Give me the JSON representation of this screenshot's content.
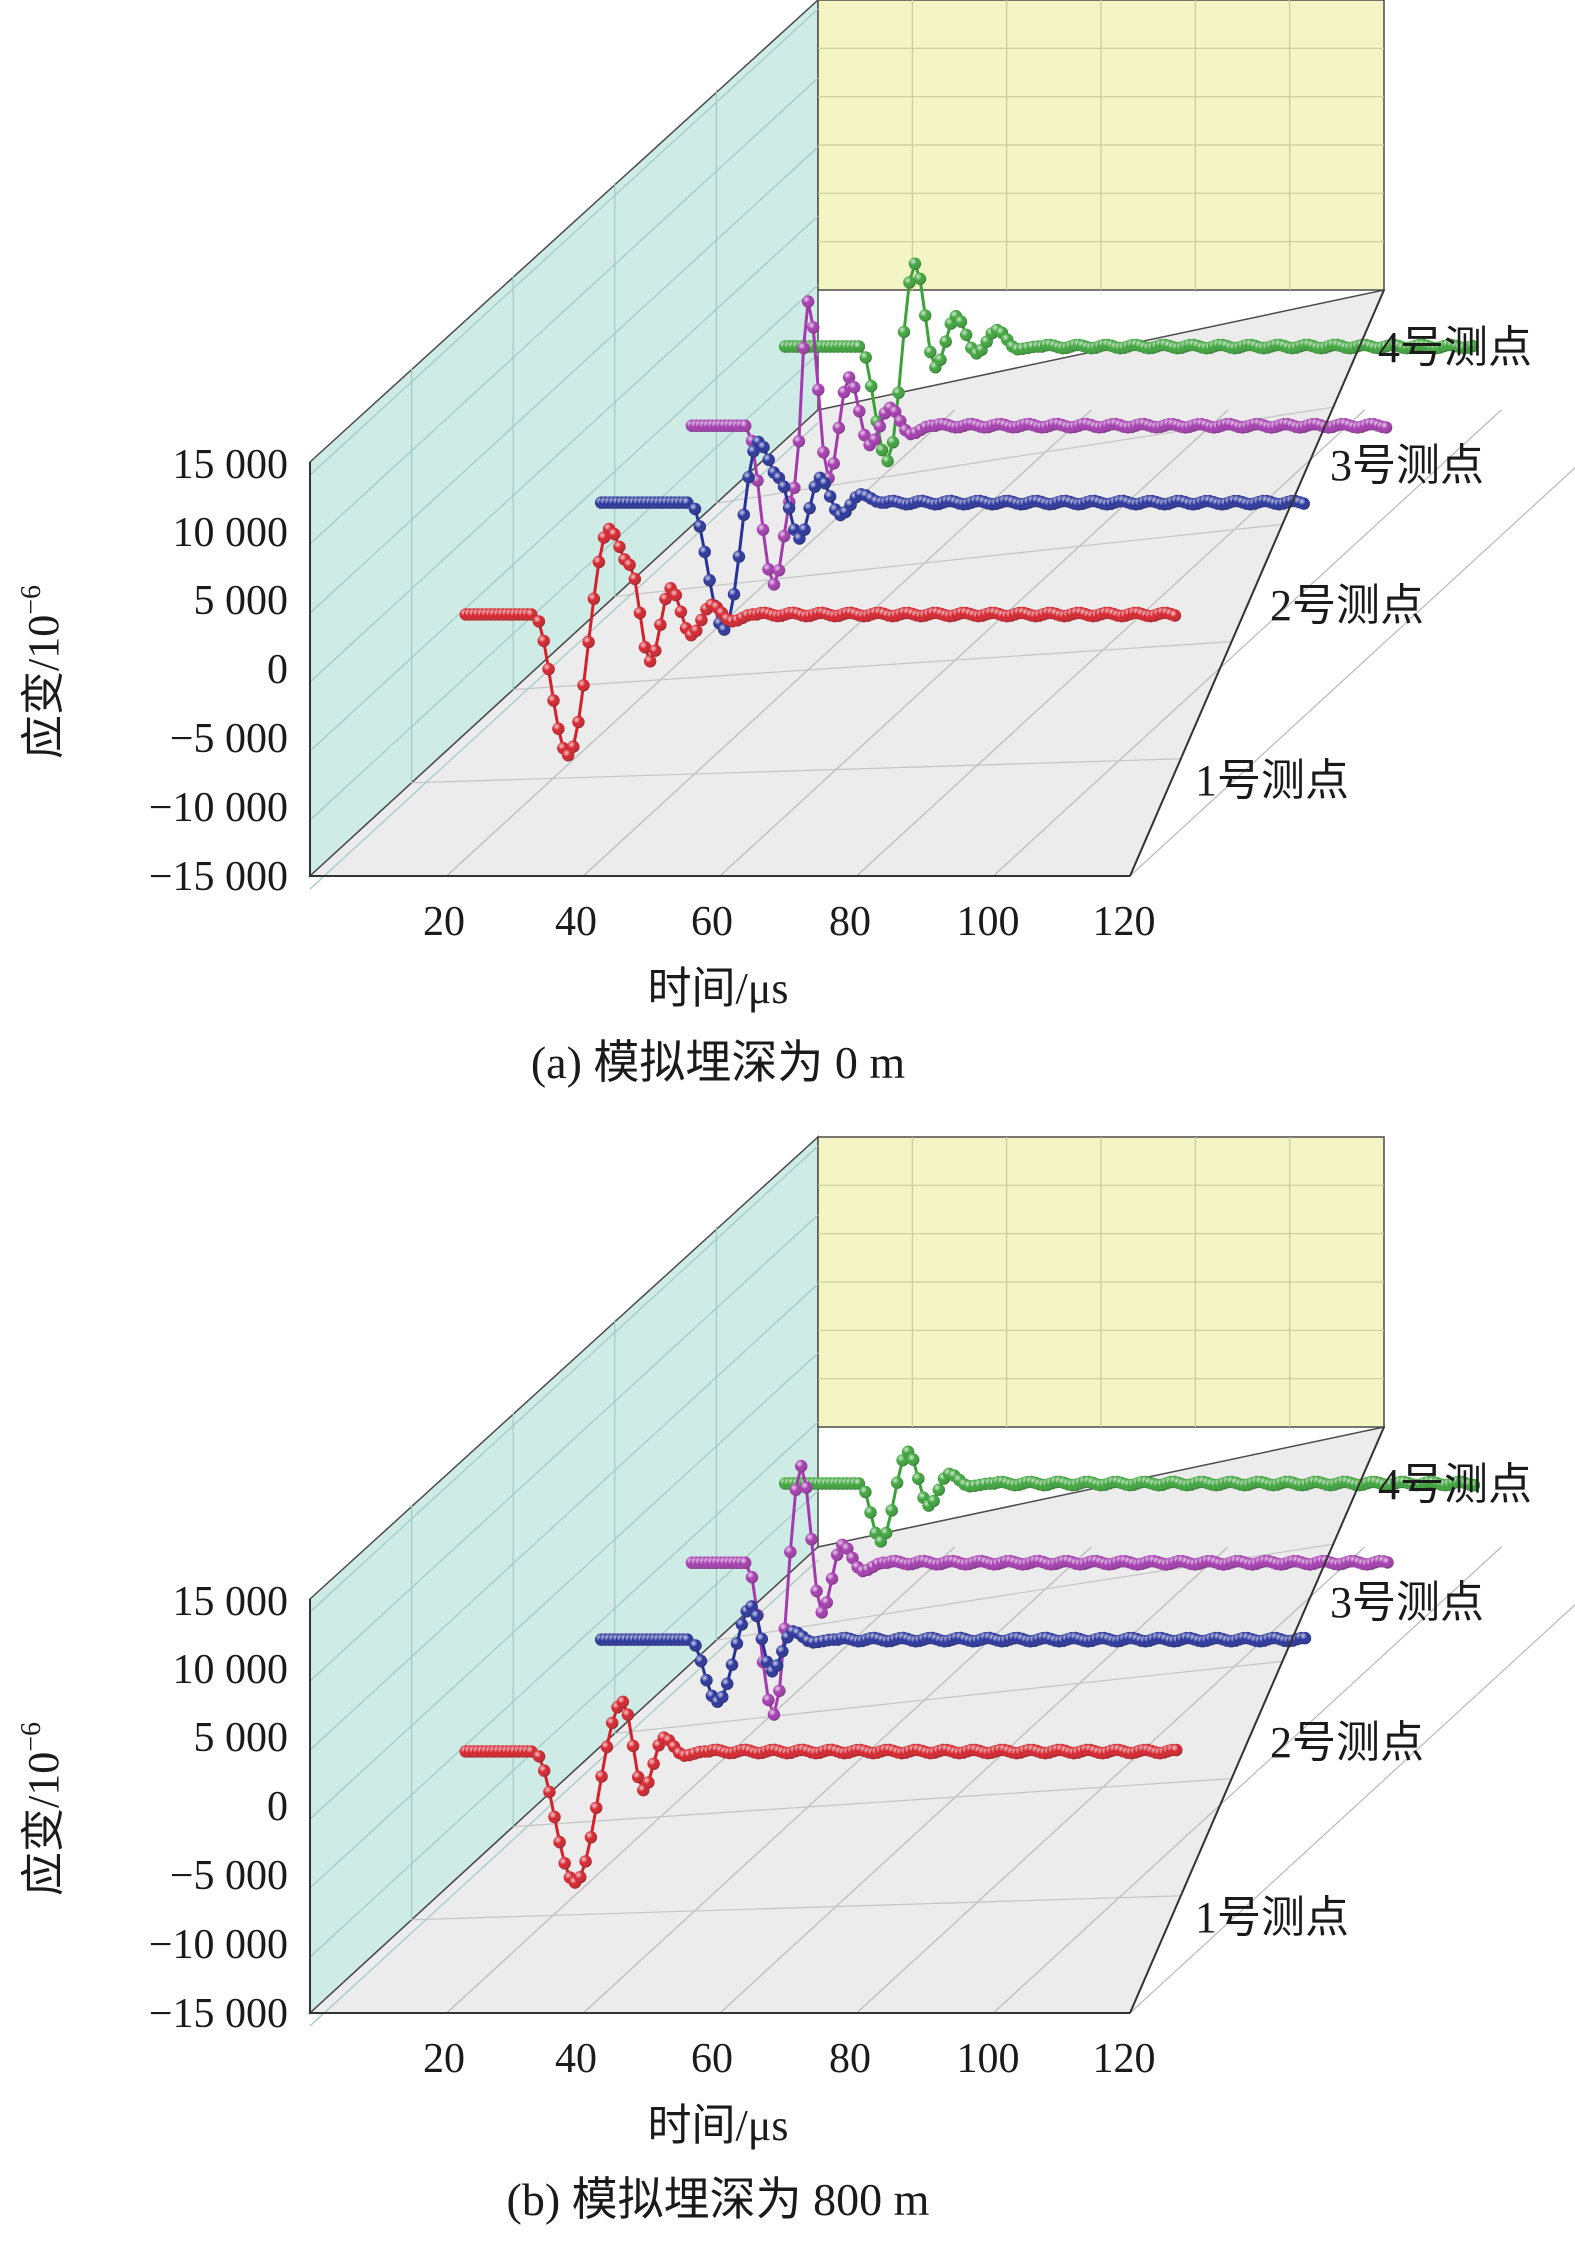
{
  "chart_data": [
    {
      "type": "line",
      "panel_caption": "(a) 模拟埋深为 0 m",
      "xlabel": "时间/μs",
      "ylabel": "应变/10",
      "ylabel_exponent": "−6",
      "xlim": [
        0,
        120
      ],
      "ylim": [
        -15000,
        15000
      ],
      "x_ticks": [
        "20",
        "40",
        "60",
        "80",
        "100",
        "120"
      ],
      "y_ticks": [
        "15 000",
        "10 000",
        "5 000",
        "0",
        "−5 000",
        "−10 000",
        "−15 000"
      ],
      "depth_ticks": [
        "1号测点",
        "2号测点",
        "3号测点",
        "4号测点"
      ],
      "grid": true,
      "series": [
        {
          "name": "1号测点",
          "color": "#d4212b",
          "start_x": 12,
          "onset_x": 22,
          "end_x": 116,
          "baseline": 0,
          "peaks": [
            [
              27,
              -10200
            ],
            [
              33,
              6200
            ],
            [
              36,
              3600
            ],
            [
              39,
              -3400
            ],
            [
              42,
              1900
            ],
            [
              45,
              -1500
            ],
            [
              48,
              700
            ],
            [
              51,
              -500
            ]
          ]
        },
        {
          "name": "2号测点",
          "color": "#27329a",
          "start_x": 14,
          "onset_x": 27,
          "end_x": 117,
          "baseline": 0,
          "peaks": [
            [
              32,
              -9200
            ],
            [
              37,
              4400
            ],
            [
              40,
              1800
            ],
            [
              43,
              -2600
            ],
            [
              46,
              1800
            ],
            [
              49,
              -900
            ],
            [
              52,
              600
            ]
          ]
        },
        {
          "name": "3号测点",
          "color": "#a33aae",
          "start_x": 15,
          "onset_x": 23,
          "end_x": 117,
          "baseline": 0,
          "peaks": [
            [
              27,
              -11500
            ],
            [
              30,
              -4500
            ],
            [
              32,
              9000
            ],
            [
              35,
              -3800
            ],
            [
              38,
              3500
            ],
            [
              41,
              -1400
            ],
            [
              44,
              1300
            ],
            [
              47,
              -600
            ]
          ]
        },
        {
          "name": "4号测点",
          "color": "#3ca33a",
          "start_x": 16,
          "onset_x": 27,
          "end_x": 117,
          "baseline": 0,
          "peaks": [
            [
              31,
              -8300
            ],
            [
              35,
              6000
            ],
            [
              38,
              -1500
            ],
            [
              41,
              2200
            ],
            [
              44,
              -500
            ],
            [
              47,
              1200
            ],
            [
              50,
              -200
            ]
          ]
        }
      ]
    },
    {
      "type": "line",
      "panel_caption": "(b) 模拟埋深为 800 m",
      "xlabel": "时间/μs",
      "ylabel": "应变/10",
      "ylabel_exponent": "−6",
      "xlim": [
        0,
        120
      ],
      "ylim": [
        -15000,
        15000
      ],
      "x_ticks": [
        "20",
        "40",
        "60",
        "80",
        "100",
        "120"
      ],
      "y_ticks": [
        "15 000",
        "10 000",
        "5 000",
        "0",
        "−5 000",
        "−10 000",
        "−15 000"
      ],
      "depth_ticks": [
        "1号测点",
        "2号测点",
        "3号测点",
        "4号测点"
      ],
      "grid": true,
      "series": [
        {
          "name": "1号测点",
          "color": "#d4212b",
          "start_x": 12,
          "onset_x": 22,
          "end_x": 116,
          "baseline": 0,
          "peaks": [
            [
              28,
              -9500
            ],
            [
              35,
              3600
            ],
            [
              38,
              -2800
            ],
            [
              41,
              1000
            ],
            [
              44,
              -300
            ]
          ]
        },
        {
          "name": "2号测点",
          "color": "#27329a",
          "start_x": 14,
          "onset_x": 27,
          "end_x": 117,
          "baseline": 0,
          "peaks": [
            [
              31,
              -4500
            ],
            [
              36,
              2400
            ],
            [
              39,
              -2300
            ],
            [
              42,
              600
            ],
            [
              45,
              -200
            ]
          ]
        },
        {
          "name": "3号测点",
          "color": "#a33aae",
          "start_x": 15,
          "onset_x": 23,
          "end_x": 117,
          "baseline": 0,
          "peaks": [
            [
              27,
              -11000
            ],
            [
              31,
              7000
            ],
            [
              34,
              -3600
            ],
            [
              37,
              1300
            ],
            [
              40,
              -600
            ]
          ]
        },
        {
          "name": "4号测点",
          "color": "#3ca33a",
          "start_x": 16,
          "onset_x": 27,
          "end_x": 117,
          "baseline": 0,
          "peaks": [
            [
              30,
              -4200
            ],
            [
              34,
              2300
            ],
            [
              37,
              -1600
            ],
            [
              40,
              700
            ],
            [
              43,
              -200
            ]
          ]
        }
      ]
    }
  ]
}
